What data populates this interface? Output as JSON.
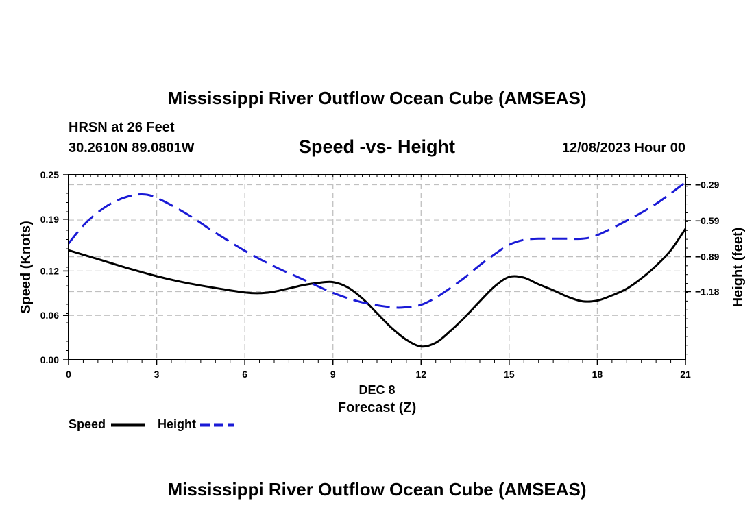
{
  "header": {
    "title": "Mississippi River Outflow Ocean Cube (AMSEAS)",
    "station": "HRSN at 26 Feet",
    "coords": "30.2610N   89.0801W",
    "date": "12/08/2023 Hour 00"
  },
  "footer": {
    "title": "Mississippi River Outflow Ocean Cube (AMSEAS)"
  },
  "colors": {
    "speed": "#000000",
    "height": "#1a1ad6",
    "grid": "#c0c0c0"
  },
  "chart_data": {
    "type": "line",
    "title": "Speed -vs- Height",
    "xlabel": "Forecast (Z)",
    "xsublabel": "DEC 8",
    "ylabel": "Speed (Knots)",
    "y2label": "Height (feet)",
    "xlim": [
      0,
      21
    ],
    "ylim": [
      0,
      0.25
    ],
    "y2lim": [
      -1.7474,
      -0.2077
    ],
    "xticks": [
      0,
      3,
      6,
      9,
      12,
      15,
      18,
      21
    ],
    "yticks": [
      0.0,
      0.06,
      0.12,
      0.19,
      0.25
    ],
    "yticklabels": [
      "0.00",
      "0.06",
      "0.12",
      "0.19",
      "0.25"
    ],
    "y2ticks": [
      -1.18,
      -0.89,
      -0.59,
      -0.29
    ],
    "y2ticklabels": [
      "−1.18",
      "−0.89",
      "−0.59",
      "−0.29"
    ],
    "grid": true,
    "legend": [
      {
        "name": "Speed",
        "style": "solid"
      },
      {
        "name": "Height",
        "style": "dashed"
      }
    ],
    "series": [
      {
        "name": "Speed",
        "axis": "left",
        "style": "solid",
        "x": [
          0,
          1,
          2,
          3,
          4,
          5,
          6,
          6.5,
          7,
          8,
          8.5,
          9,
          9.5,
          10,
          10.5,
          11,
          11.5,
          12,
          12.5,
          13,
          13.5,
          14,
          14.5,
          15,
          15.5,
          16,
          16.5,
          17,
          17.5,
          18,
          18.5,
          19,
          19.5,
          20,
          20.5,
          21
        ],
        "values": [
          0.148,
          0.136,
          0.124,
          0.113,
          0.104,
          0.097,
          0.091,
          0.09,
          0.092,
          0.101,
          0.104,
          0.105,
          0.098,
          0.083,
          0.063,
          0.043,
          0.027,
          0.018,
          0.023,
          0.039,
          0.058,
          0.079,
          0.099,
          0.112,
          0.111,
          0.102,
          0.094,
          0.085,
          0.079,
          0.08,
          0.087,
          0.096,
          0.11,
          0.127,
          0.148,
          0.177
        ]
      },
      {
        "name": "Height",
        "axis": "right",
        "style": "dashed",
        "x": [
          0,
          0.5,
          1,
          1.5,
          2,
          2.5,
          3,
          4,
          5,
          6,
          7,
          8,
          9,
          10,
          11,
          11.5,
          12,
          12.5,
          13,
          13.5,
          14,
          14.5,
          15,
          15.5,
          16,
          16.5,
          17,
          17.5,
          18,
          19,
          20,
          21
        ],
        "values": [
          -0.78,
          -0.63,
          -0.52,
          -0.44,
          -0.39,
          -0.37,
          -0.4,
          -0.53,
          -0.69,
          -0.84,
          -0.97,
          -1.08,
          -1.19,
          -1.27,
          -1.31,
          -1.31,
          -1.29,
          -1.23,
          -1.15,
          -1.06,
          -0.96,
          -0.87,
          -0.79,
          -0.75,
          -0.74,
          -0.74,
          -0.74,
          -0.74,
          -0.71,
          -0.59,
          -0.45,
          -0.27
        ]
      }
    ]
  }
}
